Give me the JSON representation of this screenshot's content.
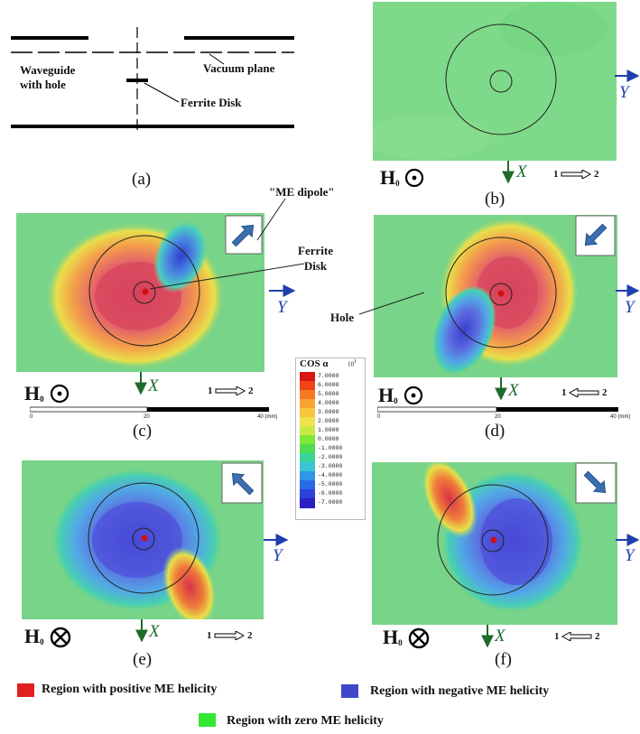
{
  "panels": {
    "a": {
      "label": "(a)",
      "waveguide_label_line1": "Waveguide",
      "waveguide_label_line2": "with hole",
      "vacuum_plane_label": "Vacuum plane",
      "ferrite_disk_label": "Ferrite Disk"
    },
    "b": {
      "label": "(b)",
      "field_label": "H",
      "field_sub": "0",
      "field_dir": "out-of-page",
      "axis_x": "X",
      "axis_y": "Y",
      "port_from": "1",
      "port_to": "2",
      "port_arrow": "right"
    },
    "c": {
      "label": "(c)",
      "field_label": "H",
      "field_sub": "0",
      "field_dir": "out-of-page",
      "axis_x": "X",
      "axis_y": "Y",
      "port_from": "1",
      "port_to": "2",
      "port_arrow": "right",
      "dipole_arrow": "up-right"
    },
    "d": {
      "label": "(d)",
      "field_label": "H",
      "field_sub": "0",
      "field_dir": "out-of-page",
      "axis_x": "X",
      "axis_y": "Y",
      "port_from": "1",
      "port_to": "2",
      "port_arrow": "left",
      "dipole_arrow": "down-left"
    },
    "e": {
      "label": "(e)",
      "field_label": "H",
      "field_sub": "0",
      "field_dir": "into-page",
      "axis_x": "X",
      "axis_y": "Y",
      "port_from": "1",
      "port_to": "2",
      "port_arrow": "right",
      "dipole_arrow": "up-left"
    },
    "f": {
      "label": "(f)",
      "field_label": "H",
      "field_sub": "0",
      "field_dir": "into-page",
      "axis_x": "X",
      "axis_y": "Y",
      "port_from": "1",
      "port_to": "2",
      "port_arrow": "left",
      "dipole_arrow": "down-right"
    }
  },
  "annotations": {
    "me_dipole": "\"ME dipole\"",
    "ferrite_disk_line1": "Ferrite",
    "ferrite_disk_line2": "Disk",
    "hole": "Hole"
  },
  "scale_bar": {
    "ticks": [
      "0",
      "20",
      "40 (mm)"
    ]
  },
  "colorbar": {
    "title": "COS α",
    "exponent": "10",
    "exponent_power": "1",
    "ticks": [
      "7.0000",
      "6.0000",
      "5.0000",
      "4.0000",
      "3.0000",
      "2.0000",
      "1.0000",
      "0.0000",
      "-1.0000",
      "-2.0000",
      "-3.0000",
      "-4.0000",
      "-5.0000",
      "-6.0000",
      "-7.0000"
    ],
    "colors": [
      "#d81414",
      "#ee4418",
      "#f67a22",
      "#f9a431",
      "#f6c640",
      "#eee34a",
      "#c9ea44",
      "#7ee838",
      "#4fdc52",
      "#3ad49a",
      "#3bc4d4",
      "#3196e8",
      "#2a6ae6",
      "#2d42d8",
      "#2a1fc4"
    ]
  },
  "legend": {
    "positive": "Region with positive ME helicity",
    "negative": "Region with negative ME helicity",
    "zero": "Region with zero ME helicity",
    "positive_color": "#e02020",
    "negative_color": "#3f48c8",
    "zero_color": "#33e833"
  },
  "colors": {
    "field_bg": "#78d488",
    "positive": "#d8324a",
    "negative": "#2f3fd0",
    "axis_arrow": "#1f3fb0",
    "x_arrow": "#1e7a2a",
    "dipole_arrow": "#3a6fb0"
  }
}
